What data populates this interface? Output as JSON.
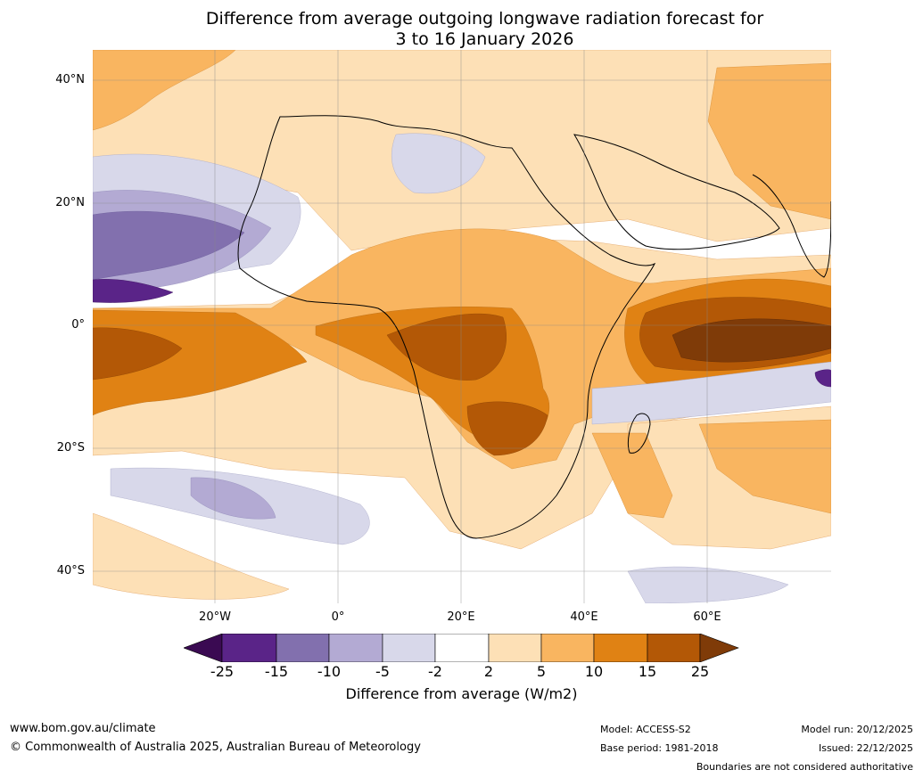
{
  "title": {
    "line1": "Difference from average outgoing longwave radiation forecast for",
    "line2": "3 to 16 January 2026"
  },
  "latitude_labels": [
    "40°N",
    "20°N",
    "0°",
    "20°S",
    "40°S"
  ],
  "longitude_labels": [
    "20°W",
    "0°",
    "20°E",
    "40°E",
    "60°E"
  ],
  "colorbar": {
    "ticks": [
      "-25",
      "-15",
      "-10",
      "-5",
      "-2",
      "2",
      "5",
      "10",
      "15",
      "25"
    ],
    "label": "Difference from average (W/m2)",
    "colors": [
      "#3a0a52",
      "#5a2488",
      "#8270ae",
      "#b3aad3",
      "#d8d8ea",
      "#ffffff",
      "#fde0b6",
      "#f9b560",
      "#e08214",
      "#b35806",
      "#7f3b08"
    ]
  },
  "footer": {
    "website": "www.bom.gov.au/climate",
    "copyright": "© Commonwealth of Australia 2025, Australian Bureau of Meteorology",
    "model": "Model: ACCESS-S2",
    "base_period": "Base period: 1981-2018",
    "model_run": "Model run: 20/12/2025",
    "issued": "Issued: 22/12/2025",
    "disclaimer": "Boundaries are not considered authoritative"
  }
}
